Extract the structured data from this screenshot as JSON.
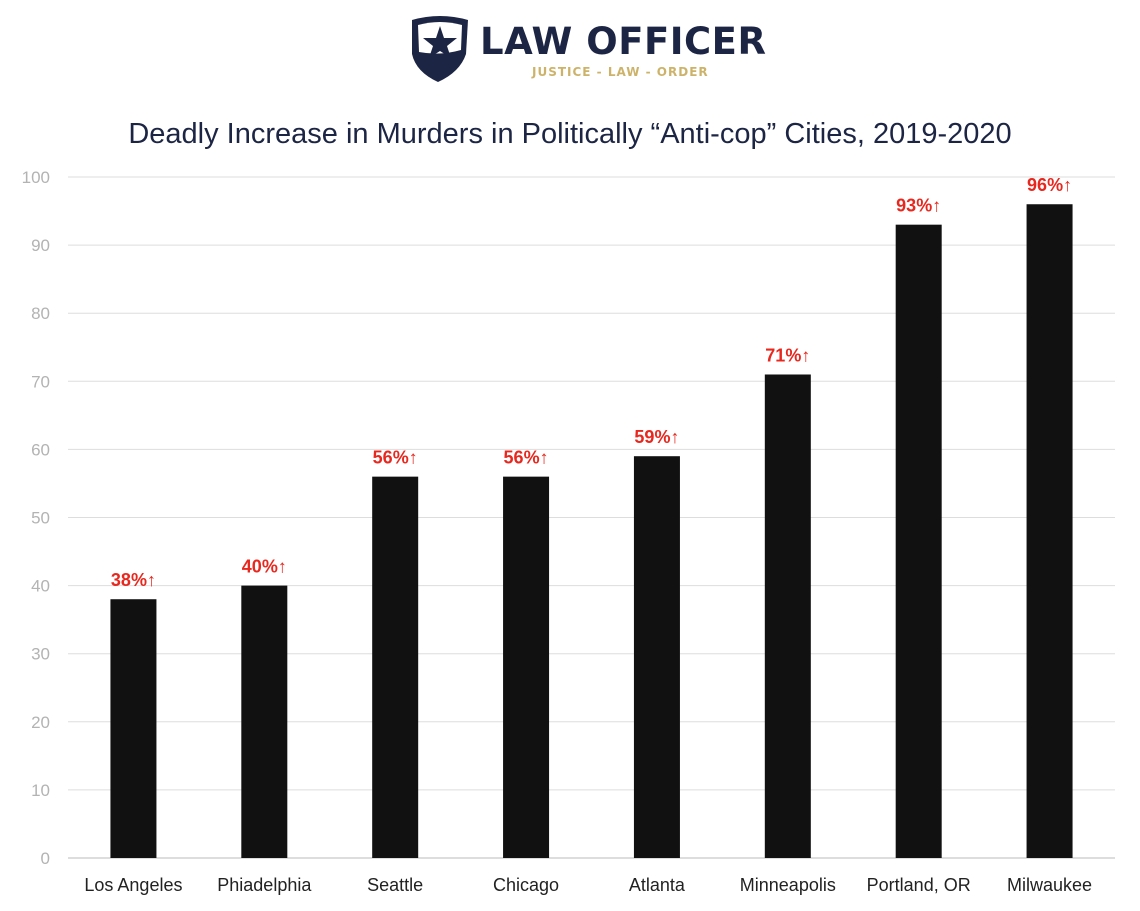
{
  "logo": {
    "name": "LAW OFFICER",
    "tagline": "JUSTICE - LAW - ORDER",
    "navy": "#1c2544",
    "gold": "#cdb36a"
  },
  "chart_data": {
    "type": "bar",
    "title": "Deadly Increase in Murders in Politically “Anti-cop” Cities, 2019-2020",
    "categories": [
      "Los Angeles",
      "Phiadelphia",
      "Seattle",
      "Chicago",
      "Atlanta",
      "Minneapolis",
      "Portland, OR",
      "Milwaukee"
    ],
    "values": [
      38,
      40,
      56,
      56,
      59,
      71,
      93,
      96
    ],
    "data_labels": [
      "38%↑",
      "40%↑",
      "56%↑",
      "56%↑",
      "59%↑",
      "71%↑",
      "93%↑",
      "96%↑"
    ],
    "ylim": [
      0,
      100
    ],
    "yticks": [
      0,
      10,
      20,
      30,
      40,
      50,
      60,
      70,
      80,
      90,
      100
    ],
    "grid": true,
    "xlabel": "",
    "ylabel": "",
    "bar_color": "#111111",
    "label_color": "#e8281e"
  }
}
